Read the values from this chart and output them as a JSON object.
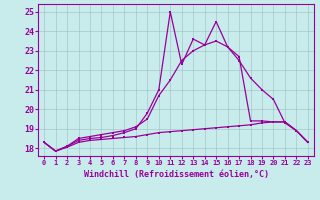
{
  "xlabel": "Windchill (Refroidissement éolien,°C)",
  "background_color": "#c8ecec",
  "grid_color": "#b0d0d0",
  "line_color": "#990099",
  "xlim": [
    -0.5,
    23.5
  ],
  "ylim": [
    17.6,
    25.4
  ],
  "xticks": [
    0,
    1,
    2,
    3,
    4,
    5,
    6,
    7,
    8,
    9,
    10,
    11,
    12,
    13,
    14,
    15,
    16,
    17,
    18,
    19,
    20,
    21,
    22,
    23
  ],
  "yticks": [
    18,
    19,
    20,
    21,
    22,
    23,
    24,
    25
  ],
  "line1_x": [
    0,
    1,
    2,
    3,
    4,
    5,
    6,
    7,
    8,
    9,
    10,
    11,
    12,
    13,
    14,
    15,
    16,
    17,
    18,
    19,
    20,
    21,
    22,
    23
  ],
  "line1_y": [
    18.3,
    17.85,
    18.05,
    18.3,
    18.4,
    18.45,
    18.5,
    18.55,
    18.6,
    18.7,
    18.8,
    18.85,
    18.9,
    18.95,
    19.0,
    19.05,
    19.1,
    19.15,
    19.2,
    19.3,
    19.35,
    19.35,
    18.9,
    18.3
  ],
  "line2_x": [
    0,
    1,
    2,
    3,
    4,
    5,
    6,
    7,
    8,
    9,
    10,
    11,
    12,
    13,
    14,
    15,
    16,
    17,
    18,
    19,
    20,
    21,
    22,
    23
  ],
  "line2_y": [
    18.3,
    17.85,
    18.1,
    18.5,
    18.6,
    18.7,
    18.8,
    18.9,
    19.1,
    19.5,
    20.7,
    21.5,
    22.5,
    23.0,
    23.3,
    23.5,
    23.2,
    22.5,
    21.6,
    21.0,
    20.5,
    19.3,
    18.9,
    18.3
  ],
  "line3_x": [
    0,
    1,
    2,
    3,
    4,
    5,
    6,
    7,
    8,
    9,
    10,
    11,
    12,
    13,
    14,
    15,
    16,
    17,
    18,
    19,
    20,
    21,
    22,
    23
  ],
  "line3_y": [
    18.3,
    17.85,
    18.1,
    18.4,
    18.5,
    18.55,
    18.65,
    18.8,
    19.0,
    19.8,
    21.0,
    25.0,
    22.3,
    23.6,
    23.3,
    24.5,
    23.2,
    22.7,
    19.4,
    19.4,
    19.35,
    19.35,
    18.9,
    18.3
  ]
}
